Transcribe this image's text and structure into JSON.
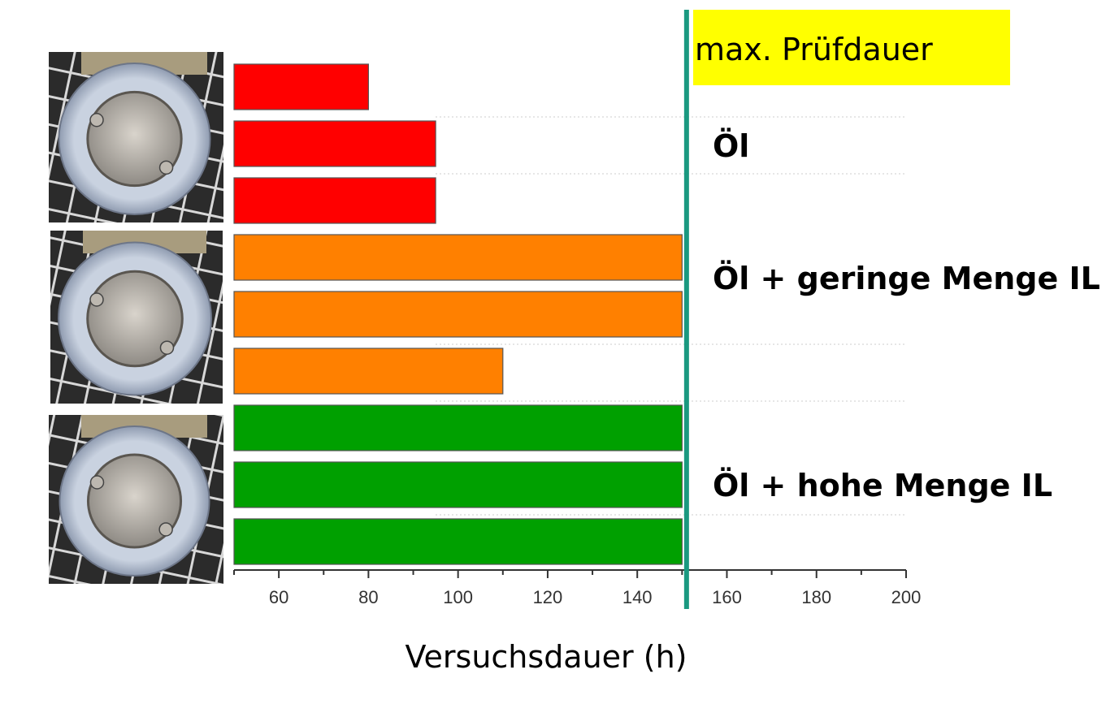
{
  "chart_data": {
    "type": "bar",
    "orientation": "horizontal",
    "xlabel": "Versuchsdauer (h)",
    "xlim": [
      50,
      200
    ],
    "xticks": [
      60,
      80,
      100,
      120,
      140,
      160,
      180,
      200
    ],
    "grid": false,
    "bars": [
      {
        "group": 0,
        "value": 80,
        "color": "#ff0000"
      },
      {
        "group": 0,
        "value": 95,
        "color": "#ff0000"
      },
      {
        "group": 0,
        "value": 95,
        "color": "#ff0000"
      },
      {
        "group": 1,
        "value": 150,
        "color": "#ff8000"
      },
      {
        "group": 1,
        "value": 150,
        "color": "#ff8000"
      },
      {
        "group": 1,
        "value": 110,
        "color": "#ff8000"
      },
      {
        "group": 2,
        "value": 150,
        "color": "#00a000"
      },
      {
        "group": 2,
        "value": 150,
        "color": "#00a000"
      },
      {
        "group": 2,
        "value": 150,
        "color": "#00a000"
      }
    ],
    "groups": [
      {
        "label": "Öl"
      },
      {
        "label": "Öl + geringe Menge IL"
      },
      {
        "label": "Öl + hohe Menge IL"
      }
    ],
    "reference_line": {
      "value": 151,
      "label": "max. Prüfdauer",
      "color": "#1a9980",
      "label_background": "#ffff00"
    }
  },
  "photos": [
    {
      "name": "oil-sample-photo"
    },
    {
      "name": "low-il-sample-photo"
    },
    {
      "name": "high-il-sample-photo"
    }
  ]
}
